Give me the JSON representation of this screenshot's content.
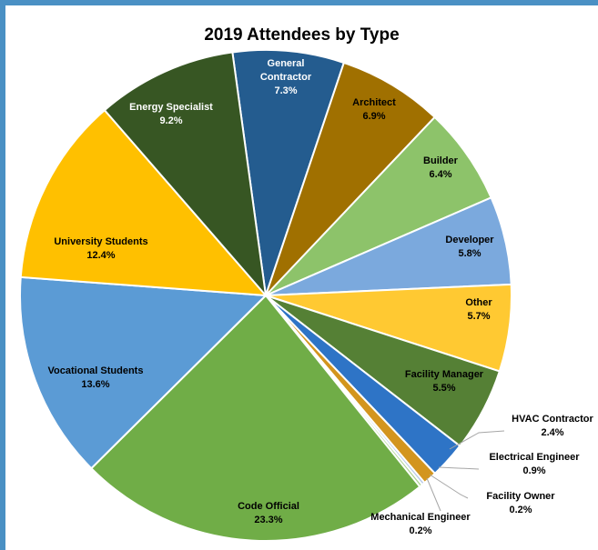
{
  "chart_data": {
    "type": "pie",
    "title": "2019 Attendees by Type",
    "slices": [
      {
        "label": "General Contractor",
        "value": 7.3,
        "pct": "7.3%",
        "color": "#245c8f",
        "text_color": "#ffffff"
      },
      {
        "label": "Architect",
        "value": 6.9,
        "pct": "6.9%",
        "color": "#a07000",
        "text_color": "#000000"
      },
      {
        "label": "Builder",
        "value": 6.4,
        "pct": "6.4%",
        "color": "#8dc36a",
        "text_color": "#000000"
      },
      {
        "label": "Developer",
        "value": 5.8,
        "pct": "5.8%",
        "color": "#7ba9dd",
        "text_color": "#000000"
      },
      {
        "label": "Other",
        "value": 5.7,
        "pct": "5.7%",
        "color": "#ffc932",
        "text_color": "#000000"
      },
      {
        "label": "Facility Manager",
        "value": 5.5,
        "pct": "5.5%",
        "color": "#558035",
        "text_color": "#000000"
      },
      {
        "label": "HVAC Contractor",
        "value": 2.4,
        "pct": "2.4%",
        "color": "#2e74c6",
        "text_color": "#000000"
      },
      {
        "label": "Electrical Engineer",
        "value": 0.9,
        "pct": "0.9%",
        "color": "#d3951e",
        "text_color": "#000000"
      },
      {
        "label": "Facility Owner",
        "value": 0.2,
        "pct": "0.2%",
        "color": "#b4c7e7",
        "text_color": "#000000"
      },
      {
        "label": "Mechanical Engineer",
        "value": 0.2,
        "pct": "0.2%",
        "color": "#a9d18e",
        "text_color": "#000000"
      },
      {
        "label": "Code Official",
        "value": 23.3,
        "pct": "23.3%",
        "color": "#70ad47",
        "text_color": "#000000"
      },
      {
        "label": "Vocational Students",
        "value": 13.6,
        "pct": "13.6%",
        "color": "#5b9bd5",
        "text_color": "#000000"
      },
      {
        "label": "University Students",
        "value": 12.4,
        "pct": "12.4%",
        "color": "#ffc000",
        "text_color": "#000000"
      },
      {
        "label": "Energy Specialist",
        "value": 9.2,
        "pct": "9.2%",
        "color": "#375623",
        "text_color": "#ffffff"
      }
    ]
  }
}
